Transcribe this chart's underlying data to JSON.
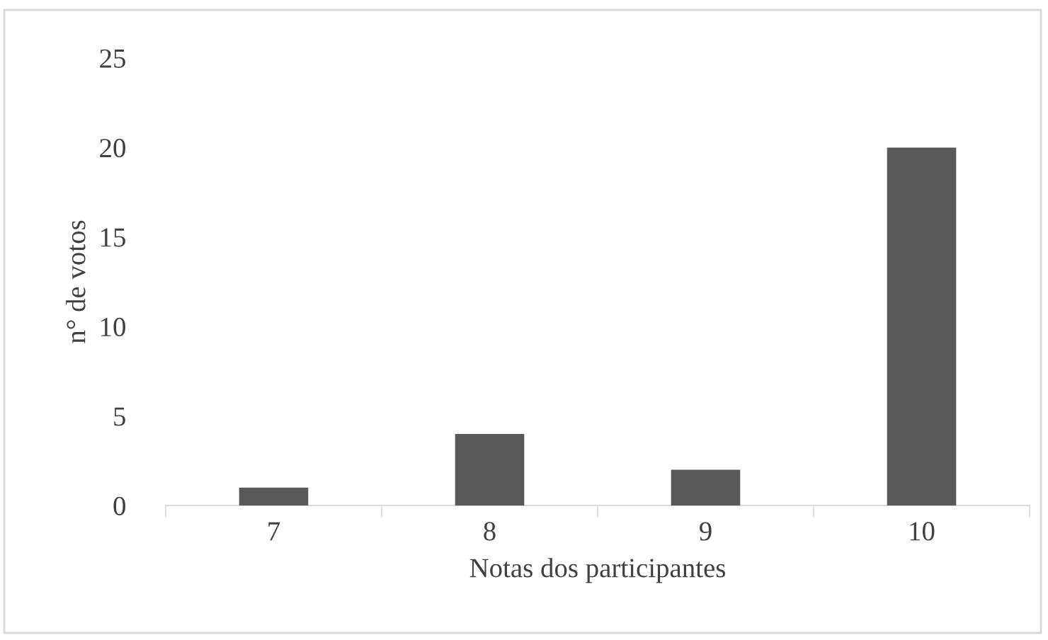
{
  "chart_data": {
    "type": "bar",
    "xlabel": "Notas dos participantes",
    "ylabel": "n° de votos",
    "categories": [
      "7",
      "8",
      "9",
      "10"
    ],
    "values": [
      1,
      4,
      2,
      20
    ],
    "color": "#595959",
    "ylim": [
      0,
      25
    ],
    "yticks": [
      0,
      5,
      10,
      15,
      20,
      25
    ],
    "grid": false
  }
}
